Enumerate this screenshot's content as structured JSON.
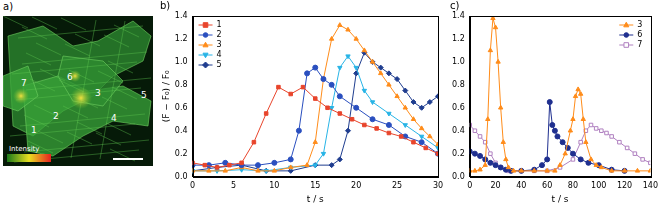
{
  "image_panel": {
    "panel_label": "a)",
    "cell_labels": [
      "1",
      "2",
      "3",
      "4",
      "5",
      "6",
      "7"
    ],
    "colorbar_label": "Intensity"
  },
  "chart_data": [
    {
      "type": "line",
      "title": "b)",
      "x_label": "t / s",
      "y_label": "(F − F₀) / F₀",
      "xlim": [
        0,
        30
      ],
      "xticks": [
        0,
        5,
        10,
        15,
        20,
        25,
        30
      ],
      "ylim": [
        0,
        1.4
      ],
      "yticks": [
        {
          "value": 0,
          "label": "0.0"
        },
        0.2,
        0.4,
        0.6,
        0.8,
        {
          "value": 1,
          "label": "1.0"
        },
        1.2,
        1.4
      ],
      "grid": false,
      "legend": "upper left",
      "series": [
        {
          "name": "1",
          "color": "#e8452c",
          "marker": "square",
          "x": [
            0,
            1.5,
            3,
            4.5,
            6,
            7.5,
            9,
            10.5,
            12,
            13.5,
            15,
            16.5,
            18,
            19.5,
            21,
            22.5,
            24,
            25.5,
            27,
            28.5,
            30
          ],
          "values": [
            0.12,
            0.1,
            0.08,
            0.1,
            0.12,
            0.3,
            0.55,
            0.78,
            0.72,
            0.78,
            0.68,
            0.6,
            0.55,
            0.5,
            0.45,
            0.42,
            0.38,
            0.35,
            0.3,
            0.25,
            0.2
          ]
        },
        {
          "name": "2",
          "color": "#2a4fbf",
          "marker": "circle",
          "x": [
            0,
            2,
            4,
            6,
            8,
            10,
            12,
            13,
            14,
            15,
            16,
            17,
            18,
            20,
            22,
            24,
            26,
            28,
            30
          ],
          "values": [
            0.1,
            0.1,
            0.12,
            0.1,
            0.1,
            0.12,
            0.15,
            0.4,
            0.9,
            0.95,
            0.85,
            0.8,
            0.7,
            0.6,
            0.5,
            0.45,
            0.35,
            0.3,
            0.2
          ]
        },
        {
          "name": "3",
          "color": "#ff8c1a",
          "marker": "triangle",
          "x": [
            0,
            2,
            4,
            6,
            8,
            10,
            12,
            14,
            15,
            16,
            17,
            18,
            19,
            20,
            21,
            22,
            23,
            24,
            25,
            26,
            27,
            28,
            29,
            30
          ],
          "values": [
            0.05,
            0.05,
            0.05,
            0.08,
            0.05,
            0.05,
            0.08,
            0.1,
            0.3,
            0.85,
            1.2,
            1.32,
            1.28,
            1.2,
            1.1,
            1.0,
            0.9,
            0.8,
            0.7,
            0.6,
            0.5,
            0.42,
            0.35,
            0.28
          ]
        },
        {
          "name": "4",
          "color": "#28b4e6",
          "marker": "triangle-down",
          "x": [
            0,
            3,
            6,
            9,
            12,
            15,
            16,
            17,
            18,
            19,
            20,
            21,
            22,
            24,
            26,
            28,
            30
          ],
          "values": [
            0.05,
            0.05,
            0.06,
            0.05,
            0.08,
            0.1,
            0.2,
            0.6,
            0.95,
            1.05,
            0.95,
            0.75,
            0.65,
            0.55,
            0.45,
            0.35,
            0.25
          ]
        },
        {
          "name": "5",
          "color": "#1f3d8f",
          "marker": "diamond",
          "x": [
            0,
            3,
            6,
            9,
            12,
            15,
            17,
            18,
            19,
            20,
            21,
            22,
            23,
            24,
            25,
            26,
            27,
            28,
            29,
            30
          ],
          "values": [
            0.05,
            0.08,
            0.1,
            0.05,
            0.05,
            0.1,
            0.1,
            0.15,
            0.4,
            0.9,
            1.08,
            1.0,
            0.95,
            0.9,
            0.85,
            0.75,
            0.65,
            0.6,
            0.65,
            0.7
          ]
        }
      ]
    },
    {
      "type": "line",
      "title": "c)",
      "x_label": "t / s",
      "xlim": [
        0,
        140
      ],
      "xticks": [
        0,
        20,
        40,
        60,
        80,
        100,
        120,
        140
      ],
      "ylim": [
        0,
        1.4
      ],
      "yticks": [
        {
          "value": 0,
          "label": "0.0"
        },
        0.2,
        0.4,
        0.6,
        0.8,
        {
          "value": 1,
          "label": "1.0"
        },
        1.2,
        1.4
      ],
      "grid": false,
      "legend": "upper right",
      "series": [
        {
          "name": "3",
          "color": "#ff8c1a",
          "marker": "triangle",
          "x": [
            0,
            4,
            8,
            12,
            14,
            16,
            18,
            20,
            22,
            24,
            26,
            28,
            30,
            34,
            40,
            50,
            60,
            66,
            70,
            74,
            78,
            80,
            82,
            84,
            86,
            88,
            90,
            94,
            98,
            102,
            110,
            120,
            130,
            140
          ],
          "values": [
            0.05,
            0.05,
            0.06,
            0.1,
            0.5,
            1.1,
            1.38,
            1.3,
            1.0,
            0.6,
            0.3,
            0.15,
            0.08,
            0.05,
            0.05,
            0.05,
            0.05,
            0.05,
            0.1,
            0.2,
            0.4,
            0.5,
            0.7,
            0.76,
            0.72,
            0.5,
            0.3,
            0.15,
            0.1,
            0.08,
            0.05,
            0.05,
            0.05,
            0.05
          ]
        },
        {
          "name": "6",
          "color": "#1f2f8f",
          "marker": "circle",
          "x": [
            0,
            4,
            8,
            12,
            16,
            20,
            24,
            28,
            32,
            40,
            50,
            56,
            60,
            62,
            64,
            66,
            68,
            72,
            76,
            80,
            86,
            92,
            100,
            110,
            120
          ],
          "values": [
            0.22,
            0.2,
            0.18,
            0.15,
            0.12,
            0.1,
            0.08,
            0.06,
            0.05,
            0.05,
            0.06,
            0.1,
            0.15,
            0.65,
            0.45,
            0.4,
            0.35,
            0.3,
            0.25,
            0.2,
            0.15,
            0.12,
            0.1,
            0.06,
            0.05
          ]
        },
        {
          "name": "7",
          "color": "#b080c0",
          "marker": "open-square",
          "x": [
            0,
            4,
            8,
            12,
            16,
            20,
            24,
            30,
            40,
            50,
            60,
            70,
            80,
            86,
            90,
            94,
            98,
            102,
            106,
            110,
            116,
            122,
            128,
            134,
            140
          ],
          "values": [
            0.45,
            0.4,
            0.35,
            0.3,
            0.2,
            0.12,
            0.08,
            0.05,
            0.05,
            0.05,
            0.05,
            0.08,
            0.15,
            0.3,
            0.4,
            0.45,
            0.42,
            0.4,
            0.38,
            0.35,
            0.3,
            0.25,
            0.2,
            0.15,
            0.12
          ]
        }
      ]
    }
  ]
}
